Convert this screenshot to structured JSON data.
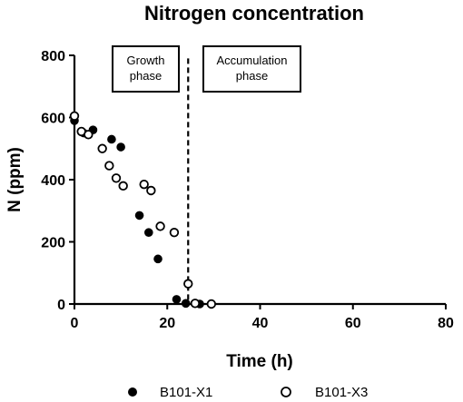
{
  "chart_data": {
    "type": "scatter",
    "title": "Nitrogen concentration",
    "xlabel": "Time (h)",
    "ylabel": "N (ppm)",
    "xlim": [
      0,
      80
    ],
    "ylim": [
      0,
      800
    ],
    "xticks": [
      "0",
      "20",
      "40",
      "60",
      "80"
    ],
    "yticks": [
      "0",
      "200",
      "400",
      "600",
      "800"
    ],
    "grid": false,
    "legend_position": "bottom",
    "phase_boundary_x": 24.5,
    "annotations": [
      {
        "lines": [
          "Growth",
          "phase"
        ],
        "side": "left-of-boundary"
      },
      {
        "lines": [
          "Accumulation",
          "phase"
        ],
        "side": "right-of-boundary"
      }
    ],
    "series": [
      {
        "name": "B101-X1",
        "marker": "filled-circle",
        "x": [
          0,
          2,
          4,
          8,
          10,
          14,
          16,
          18,
          22,
          24,
          26,
          27
        ],
        "y": [
          590,
          550,
          560,
          530,
          505,
          285,
          230,
          145,
          15,
          2,
          2,
          0
        ]
      },
      {
        "name": "B101-X3",
        "marker": "open-circle",
        "x": [
          0,
          1.5,
          3,
          6,
          7.5,
          9,
          10.5,
          15,
          16.5,
          18.5,
          21.5,
          24.5,
          26,
          29.5
        ],
        "y": [
          605,
          555,
          545,
          500,
          445,
          405,
          380,
          385,
          365,
          250,
          230,
          65,
          2,
          0
        ]
      }
    ]
  }
}
